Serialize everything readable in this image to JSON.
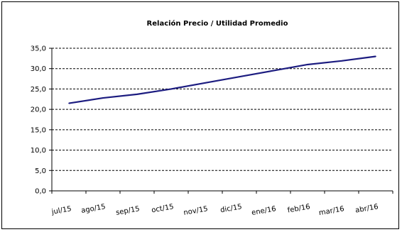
{
  "chart_data": {
    "type": "line",
    "title": "Relación Precio / Utilidad Promedio",
    "xlabel": "",
    "ylabel": "",
    "categories": [
      "jul/15",
      "ago/15",
      "sep/15",
      "oct/15",
      "nov/15",
      "dic/15",
      "ene/16",
      "feb/16",
      "mar/16",
      "abr/16"
    ],
    "series": [
      {
        "values": [
          21.5,
          22.8,
          23.7,
          25.0,
          26.5,
          28.0,
          29.5,
          31.0,
          31.9,
          33.0
        ]
      }
    ],
    "ylim": [
      0,
      35
    ],
    "yticks": [
      "0,0",
      "5,0",
      "10,0",
      "15,0",
      "20,0",
      "25,0",
      "30,0",
      "35,0"
    ],
    "grid": "horizontal dashed",
    "legend": "none",
    "colors": {
      "line": "#1c1c80",
      "grid": "#000000"
    }
  }
}
